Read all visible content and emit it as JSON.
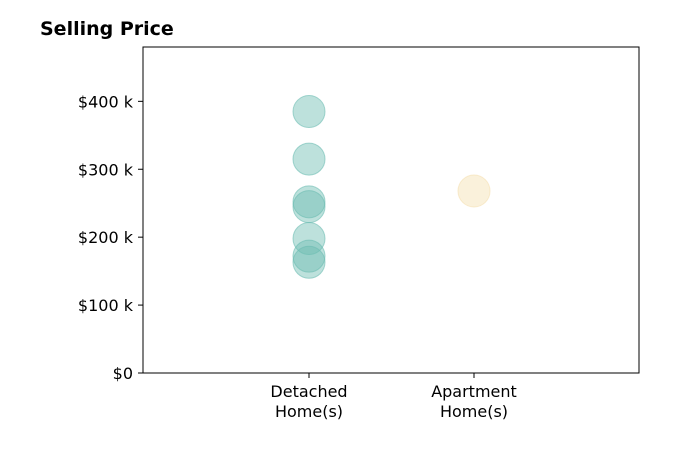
{
  "chart_data": {
    "type": "scatter",
    "title": "Selling Price",
    "xlabel": "",
    "ylabel": "",
    "categories": [
      [
        "Detached",
        "Home(s)"
      ],
      [
        "Apartment",
        "Home(s)"
      ]
    ],
    "ylim": [
      0,
      480000
    ],
    "yticks": [
      {
        "value": 0,
        "label": "$0"
      },
      {
        "value": 100000,
        "label": "$100 k"
      },
      {
        "value": 200000,
        "label": "$200 k"
      },
      {
        "value": 300000,
        "label": "$300 k"
      },
      {
        "value": 400000,
        "label": "$400 k"
      }
    ],
    "grid": false,
    "series": [
      {
        "category": 0,
        "color": "#6cbdb2",
        "values": [
          385000,
          315000,
          252000,
          245000,
          198000,
          172000,
          163000
        ]
      },
      {
        "category": 1,
        "color": "#f5dfb0",
        "values": [
          268000
        ]
      }
    ]
  }
}
